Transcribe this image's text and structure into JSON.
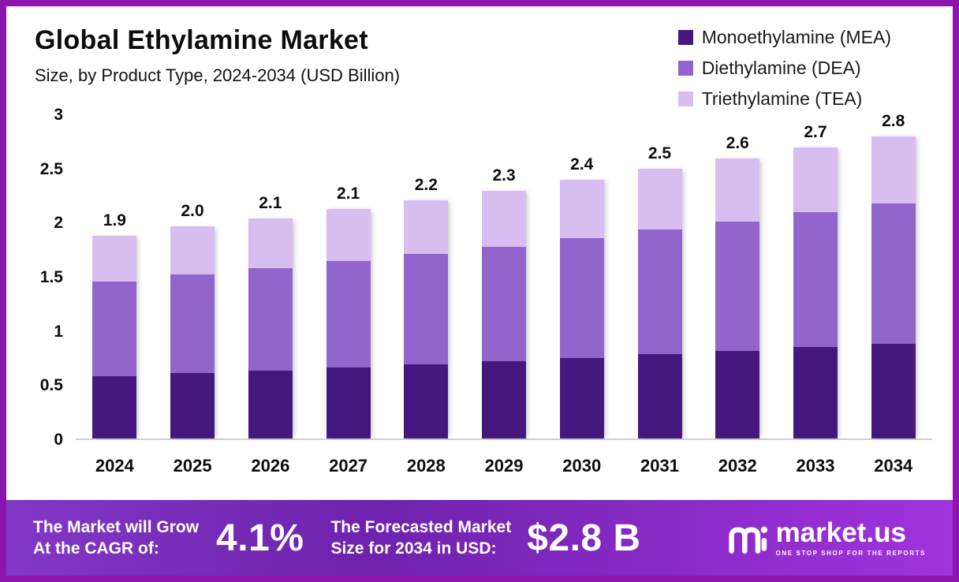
{
  "page": {
    "frame_color": "#8c15ad",
    "background": "#ffffff"
  },
  "header": {
    "title": "Global Ethylamine Market",
    "subtitle": "Size, by Product Type, 2024-2034 (USD Billion)"
  },
  "legend": [
    {
      "label": "Monoethylamine (MEA)",
      "color": "#45187f"
    },
    {
      "label": "Diethylamine (DEA)",
      "color": "#9265cc"
    },
    {
      "label": "Triethylamine (TEA)",
      "color": "#d8bdf0"
    }
  ],
  "chart_data": {
    "type": "bar",
    "stacked": true,
    "title": "Global Ethylamine Market",
    "subtitle": "Size, by Product Type, 2024-2034 (USD Billion)",
    "unit": "USD Billion",
    "grid": false,
    "legend_position": "top-right",
    "ylim": [
      0,
      3
    ],
    "yticks": [
      {
        "value": 0,
        "label": "0"
      },
      {
        "value": 0.5,
        "label": "0.5"
      },
      {
        "value": 1,
        "label": "1"
      },
      {
        "value": 1.5,
        "label": "1.5"
      },
      {
        "value": 2,
        "label": "2"
      },
      {
        "value": 2.5,
        "label": "2.5"
      },
      {
        "value": 3,
        "label": "3"
      }
    ],
    "categories": [
      "2024",
      "2025",
      "2026",
      "2027",
      "2028",
      "2029",
      "2030",
      "2031",
      "2032",
      "2033",
      "2034"
    ],
    "series": [
      {
        "key": "mea",
        "name": "Monoethylamine (MEA)",
        "color": "#45187f",
        "values": [
          0.58,
          0.61,
          0.63,
          0.66,
          0.69,
          0.72,
          0.75,
          0.78,
          0.81,
          0.85,
          0.88
        ]
      },
      {
        "key": "dea",
        "name": "Diethylamine (DEA)",
        "color": "#9265cc",
        "values": [
          0.88,
          0.91,
          0.95,
          0.99,
          1.02,
          1.06,
          1.11,
          1.16,
          1.2,
          1.25,
          1.3
        ]
      },
      {
        "key": "tea",
        "name": "Triethylamine (TEA)",
        "color": "#d8bdf0",
        "values": [
          0.42,
          0.45,
          0.46,
          0.48,
          0.5,
          0.52,
          0.54,
          0.56,
          0.59,
          0.6,
          0.62
        ]
      }
    ],
    "total_labels": [
      "1.9",
      "2.0",
      "2.1",
      "2.1",
      "2.2",
      "2.3",
      "2.4",
      "2.5",
      "2.6",
      "2.7",
      "2.8"
    ]
  },
  "footer": {
    "gradient": [
      "#8238c6",
      "#6e22ad",
      "#a132dd"
    ],
    "cagr_label_line1": "The Market will Grow",
    "cagr_label_line2": "At the CAGR of:",
    "cagr_value": "4.1%",
    "forecast_label_line1": "The Forecasted Market",
    "forecast_label_line2": "Size for 2034 in USD:",
    "forecast_value": "$2.8 B",
    "brand_name": "market.us",
    "brand_tagline": "ONE STOP SHOP FOR THE REPORTS"
  }
}
